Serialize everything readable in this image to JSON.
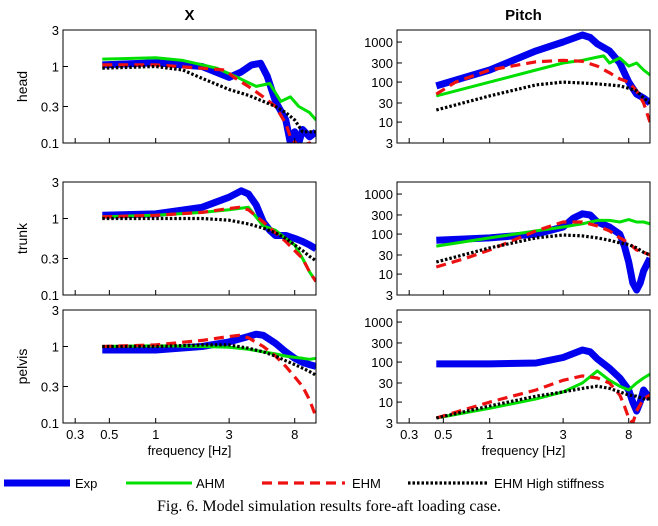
{
  "caption": "Fig. 6. Model simulation results fore-aft loading case.",
  "colors": {
    "Exp": "#0000ee",
    "AHM": "#00e000",
    "EHM": "#ee1111",
    "EHM High stiffness": "#000000"
  },
  "legend": [
    "Exp",
    "AHM",
    "EHM",
    "EHM High stiffness"
  ],
  "chart_data": [
    {
      "type": "line",
      "panel": "X-head",
      "column_title": "X",
      "row_label": "head",
      "x_scale": "log",
      "y_scale": "log",
      "xlim": [
        0.25,
        11
      ],
      "ylim": [
        0.1,
        3
      ],
      "xticks": [
        0.3,
        0.5,
        1,
        3,
        8
      ],
      "yticks": [
        0.1,
        0.3,
        1,
        3
      ],
      "show_xtick_labels": false,
      "series": [
        {
          "name": "Exp",
          "x": [
            0.45,
            1,
            2,
            3,
            3.6,
            4.2,
            4.8,
            5.3,
            6,
            7,
            7.5,
            8,
            8.5,
            9,
            10,
            11
          ],
          "y": [
            1.05,
            1.12,
            1.0,
            0.72,
            0.85,
            1.05,
            1.1,
            0.75,
            0.35,
            0.2,
            0.1,
            0.14,
            0.1,
            0.15,
            0.12,
            0.14
          ]
        },
        {
          "name": "AHM",
          "x": [
            0.45,
            1,
            1.5,
            2.5,
            3.5,
            4.5,
            5.5,
            6.5,
            7.5,
            8.5,
            10,
            11
          ],
          "y": [
            1.25,
            1.3,
            1.2,
            0.95,
            0.7,
            0.55,
            0.6,
            0.35,
            0.4,
            0.3,
            0.25,
            0.2
          ]
        },
        {
          "name": "EHM",
          "x": [
            0.45,
            1,
            2,
            2.8,
            3.3,
            4,
            5,
            6,
            7,
            7.5,
            8.5,
            10,
            11
          ],
          "y": [
            1.05,
            1.05,
            0.95,
            0.9,
            0.7,
            0.55,
            0.4,
            0.3,
            0.18,
            0.12,
            0.09,
            0.1,
            0.08
          ]
        },
        {
          "name": "EHM High stiffness",
          "x": [
            0.45,
            1,
            1.5,
            2,
            3,
            4,
            5,
            6,
            7,
            8,
            9,
            10,
            11
          ],
          "y": [
            0.95,
            1.0,
            0.9,
            0.7,
            0.5,
            0.42,
            0.35,
            0.3,
            0.25,
            0.2,
            0.14,
            0.14,
            0.14
          ]
        }
      ]
    },
    {
      "type": "line",
      "panel": "Pitch-head",
      "column_title": "Pitch",
      "row_label": "",
      "x_scale": "log",
      "y_scale": "log",
      "xlim": [
        0.25,
        11
      ],
      "ylim": [
        3,
        2000
      ],
      "xticks": [
        0.3,
        0.5,
        1,
        3,
        8
      ],
      "yticks": [
        3,
        10,
        30,
        100,
        300,
        1000
      ],
      "show_xtick_labels": false,
      "series": [
        {
          "name": "Exp",
          "x": [
            0.45,
            1,
            2,
            3,
            4,
            4.5,
            5,
            6,
            7,
            8,
            9,
            10,
            11
          ],
          "y": [
            80,
            200,
            600,
            1000,
            1500,
            1300,
            900,
            600,
            300,
            100,
            50,
            40,
            30
          ]
        },
        {
          "name": "AHM",
          "x": [
            0.45,
            1,
            2,
            3,
            4,
            5,
            5.5,
            6,
            7,
            8,
            9,
            10,
            11
          ],
          "y": [
            45,
            100,
            200,
            300,
            350,
            420,
            450,
            300,
            400,
            250,
            300,
            200,
            150
          ]
        },
        {
          "name": "EHM",
          "x": [
            0.45,
            0.6,
            1,
            2,
            3,
            4,
            5,
            6,
            7,
            8,
            9,
            10,
            11
          ],
          "y": [
            50,
            100,
            200,
            320,
            350,
            330,
            250,
            170,
            120,
            100,
            60,
            30,
            10
          ]
        },
        {
          "name": "EHM High stiffness",
          "x": [
            0.45,
            1,
            2,
            3,
            4,
            5,
            6,
            7,
            8,
            9,
            10,
            11
          ],
          "y": [
            20,
            45,
            85,
            100,
            95,
            90,
            85,
            80,
            70,
            60,
            40,
            30
          ]
        }
      ]
    },
    {
      "type": "line",
      "panel": "X-trunk",
      "column_title": "",
      "row_label": "trunk",
      "x_scale": "log",
      "y_scale": "log",
      "xlim": [
        0.25,
        11
      ],
      "ylim": [
        0.1,
        3
      ],
      "xticks": [
        0.3,
        0.5,
        1,
        3,
        8
      ],
      "yticks": [
        0.1,
        0.3,
        1,
        3
      ],
      "show_xtick_labels": false,
      "series": [
        {
          "name": "Exp",
          "x": [
            0.45,
            1,
            2,
            3,
            3.6,
            4,
            4.5,
            5,
            5.5,
            6,
            7,
            8,
            9,
            10,
            11
          ],
          "y": [
            1.1,
            1.15,
            1.4,
            1.9,
            2.3,
            2.1,
            1.5,
            0.9,
            0.7,
            0.6,
            0.6,
            0.55,
            0.5,
            0.45,
            0.4
          ]
        },
        {
          "name": "AHM",
          "x": [
            0.45,
            1,
            2,
            3,
            4,
            5,
            6,
            7,
            8,
            9,
            10,
            11
          ],
          "y": [
            1.05,
            1.1,
            1.2,
            1.3,
            1.4,
            0.8,
            0.7,
            0.55,
            0.45,
            0.3,
            0.2,
            0.15
          ]
        },
        {
          "name": "EHM",
          "x": [
            0.45,
            1,
            2,
            3,
            3.5,
            4,
            5,
            6,
            7,
            8,
            9,
            10,
            11
          ],
          "y": [
            1.05,
            1.1,
            1.2,
            1.35,
            1.4,
            1.3,
            0.9,
            0.65,
            0.5,
            0.38,
            0.3,
            0.2,
            0.15
          ]
        },
        {
          "name": "EHM High stiffness",
          "x": [
            0.45,
            1,
            2,
            3,
            4,
            5,
            6,
            7,
            8,
            9,
            10,
            11
          ],
          "y": [
            1.0,
            1.0,
            1.0,
            0.95,
            0.85,
            0.75,
            0.65,
            0.55,
            0.45,
            0.38,
            0.32,
            0.28
          ]
        }
      ]
    },
    {
      "type": "line",
      "panel": "Pitch-trunk",
      "column_title": "",
      "row_label": "",
      "x_scale": "log",
      "y_scale": "log",
      "xlim": [
        0.25,
        11
      ],
      "ylim": [
        3,
        2000
      ],
      "xticks": [
        0.3,
        0.5,
        1,
        3,
        8
      ],
      "yticks": [
        3,
        10,
        30,
        100,
        300,
        1000
      ],
      "show_xtick_labels": false,
      "series": [
        {
          "name": "Exp",
          "x": [
            0.45,
            1,
            2,
            3,
            3.5,
            4,
            4.5,
            5,
            6,
            7,
            7.5,
            8,
            8.5,
            9,
            9.5,
            10,
            11
          ],
          "y": [
            70,
            80,
            100,
            150,
            250,
            320,
            300,
            200,
            150,
            100,
            50,
            20,
            6,
            4,
            6,
            12,
            25
          ]
        },
        {
          "name": "AHM",
          "x": [
            0.45,
            1,
            2,
            3,
            4,
            5,
            6,
            7,
            8,
            9,
            10,
            11
          ],
          "y": [
            50,
            80,
            120,
            150,
            180,
            220,
            220,
            200,
            230,
            200,
            200,
            180
          ]
        },
        {
          "name": "EHM",
          "x": [
            0.45,
            0.7,
            1,
            2,
            3,
            4,
            5,
            6,
            7,
            8,
            9,
            10,
            11
          ],
          "y": [
            15,
            25,
            40,
            120,
            200,
            200,
            160,
            120,
            80,
            60,
            40,
            35,
            30
          ]
        },
        {
          "name": "EHM High stiffness",
          "x": [
            0.45,
            1,
            2,
            3,
            4,
            5,
            6,
            7,
            8,
            9,
            10,
            11
          ],
          "y": [
            20,
            45,
            80,
            95,
            90,
            80,
            70,
            60,
            55,
            45,
            35,
            30
          ]
        }
      ]
    },
    {
      "type": "line",
      "panel": "X-pelvis",
      "column_title": "",
      "row_label": "pelvis",
      "x_scale": "log",
      "y_scale": "log",
      "xlim": [
        0.25,
        11
      ],
      "ylim": [
        0.1,
        3
      ],
      "xticks": [
        0.3,
        0.5,
        1,
        3,
        8
      ],
      "yticks": [
        0.1,
        0.3,
        1,
        3
      ],
      "show_xtick_labels": true,
      "xlabel": "frequency [Hz]",
      "series": [
        {
          "name": "Exp",
          "x": [
            0.45,
            1,
            2,
            3,
            4,
            4.5,
            5,
            6,
            7,
            8,
            9,
            10,
            11
          ],
          "y": [
            0.9,
            0.9,
            1.0,
            1.15,
            1.35,
            1.45,
            1.4,
            1.1,
            0.85,
            0.7,
            0.62,
            0.58,
            0.55
          ]
        },
        {
          "name": "AHM",
          "x": [
            0.45,
            1,
            2,
            3,
            4,
            5,
            6,
            7,
            8,
            9,
            10,
            11
          ],
          "y": [
            1.0,
            1.02,
            1.0,
            0.98,
            0.92,
            0.85,
            0.8,
            0.75,
            0.72,
            0.7,
            0.68,
            0.7
          ]
        },
        {
          "name": "EHM",
          "x": [
            0.45,
            1,
            2,
            3,
            3.5,
            4,
            5,
            6,
            7,
            8,
            9,
            10,
            11
          ],
          "y": [
            1.0,
            1.05,
            1.2,
            1.35,
            1.4,
            1.3,
            1.0,
            0.75,
            0.55,
            0.4,
            0.3,
            0.2,
            0.12
          ]
        },
        {
          "name": "EHM High stiffness",
          "x": [
            0.45,
            1,
            2,
            3,
            4,
            5,
            6,
            7,
            8,
            9,
            10,
            11
          ],
          "y": [
            1.0,
            1.0,
            1.05,
            1.05,
            0.95,
            0.85,
            0.75,
            0.65,
            0.58,
            0.52,
            0.47,
            0.42
          ]
        }
      ]
    },
    {
      "type": "line",
      "panel": "Pitch-pelvis",
      "column_title": "",
      "row_label": "",
      "x_scale": "log",
      "y_scale": "log",
      "xlim": [
        0.25,
        11
      ],
      "ylim": [
        3,
        2000
      ],
      "xticks": [
        0.3,
        0.5,
        1,
        3,
        8
      ],
      "yticks": [
        3,
        10,
        30,
        100,
        300,
        1000
      ],
      "show_xtick_labels": true,
      "xlabel": "frequency [Hz]",
      "series": [
        {
          "name": "Exp",
          "x": [
            0.45,
            1,
            2,
            3,
            4,
            4.5,
            5,
            6,
            7,
            8,
            8.5,
            9,
            9.5,
            10,
            11
          ],
          "y": [
            90,
            90,
            95,
            130,
            200,
            180,
            120,
            70,
            40,
            20,
            10,
            6,
            10,
            20,
            12
          ]
        },
        {
          "name": "AHM",
          "x": [
            0.45,
            1,
            2,
            3,
            4,
            5,
            6,
            7,
            8,
            9,
            10,
            11
          ],
          "y": [
            4,
            7,
            12,
            18,
            30,
            60,
            35,
            25,
            20,
            30,
            40,
            50
          ]
        },
        {
          "name": "EHM",
          "x": [
            0.45,
            1,
            2,
            3,
            4,
            5,
            6,
            7,
            7.5,
            8,
            8.5,
            9,
            10,
            11
          ],
          "y": [
            4,
            10,
            20,
            35,
            45,
            40,
            30,
            15,
            8,
            4,
            3,
            6,
            12,
            15
          ]
        },
        {
          "name": "EHM High stiffness",
          "x": [
            0.45,
            1,
            2,
            3,
            4,
            5,
            6,
            7,
            8,
            9,
            10,
            11
          ],
          "y": [
            4,
            8,
            14,
            18,
            22,
            25,
            22,
            18,
            15,
            14,
            12,
            12
          ]
        }
      ]
    }
  ]
}
